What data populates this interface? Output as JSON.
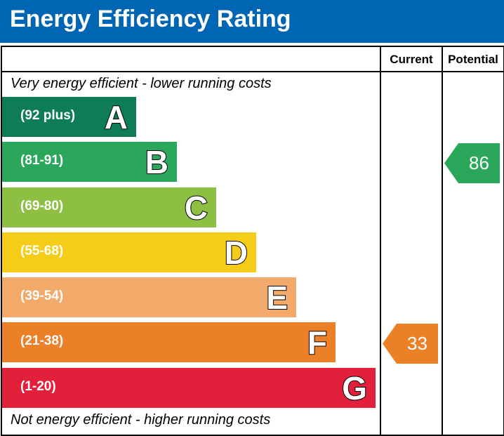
{
  "title": "Energy Efficiency Rating",
  "columns": {
    "current": "Current",
    "potential": "Potential"
  },
  "captions": {
    "top": "Very energy efficient - lower running costs",
    "bottom": "Not energy efficient - higher running costs"
  },
  "chart_data": {
    "type": "bar",
    "categories": [
      "A",
      "B",
      "C",
      "D",
      "E",
      "F",
      "G"
    ],
    "bands": [
      {
        "letter": "A",
        "range": "(92 plus)",
        "color": "#0e7d55"
      },
      {
        "letter": "B",
        "range": "(81-91)",
        "color": "#2aa75a"
      },
      {
        "letter": "C",
        "range": "(69-80)",
        "color": "#8dbf43"
      },
      {
        "letter": "D",
        "range": "(55-68)",
        "color": "#f5cc17"
      },
      {
        "letter": "E",
        "range": "(39-54)",
        "color": "#f2a96a"
      },
      {
        "letter": "F",
        "range": "(21-38)",
        "color": "#ec8026"
      },
      {
        "letter": "G",
        "range": "(1-20)",
        "color": "#e2203b"
      }
    ],
    "current": {
      "value": 33,
      "band": "F",
      "color": "#ec8026"
    },
    "potential": {
      "value": 86,
      "band": "B",
      "color": "#2aa75a"
    }
  }
}
